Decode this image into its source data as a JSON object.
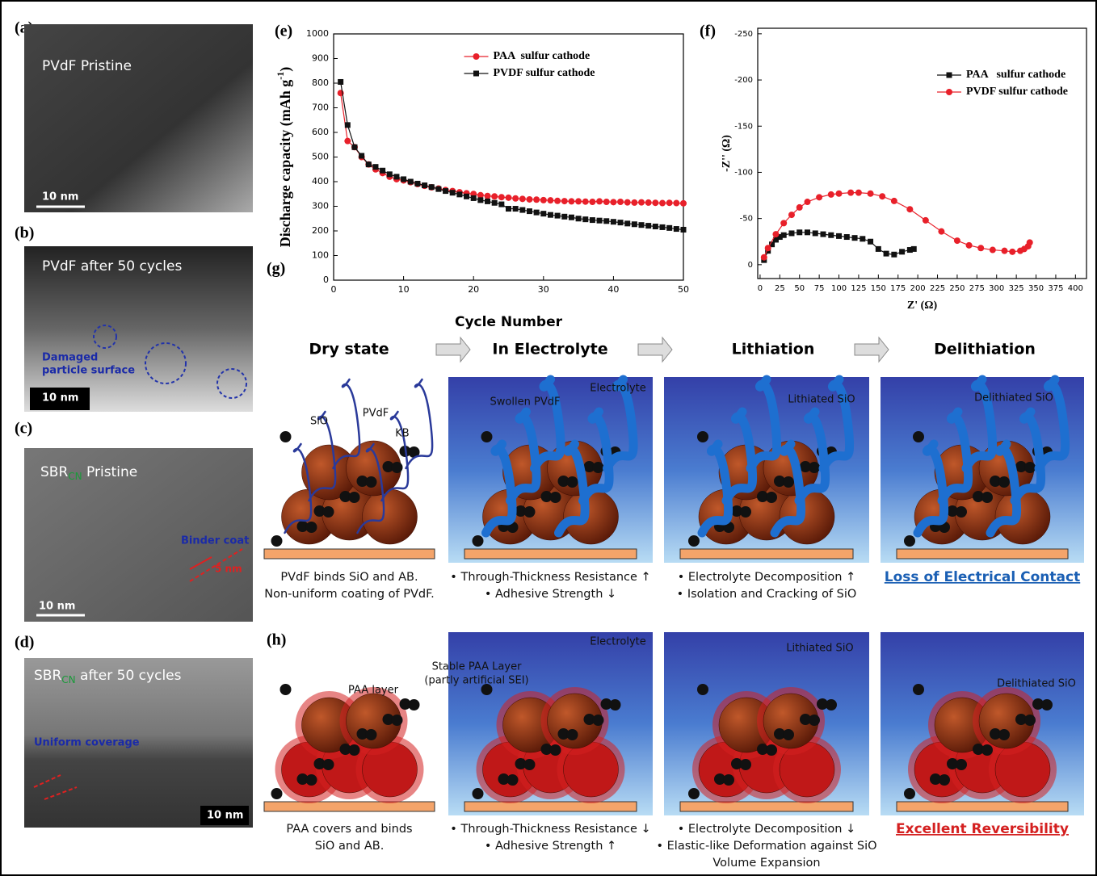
{
  "panels": {
    "a": {
      "label": "(a)",
      "title": "PVdF Pristine",
      "scale": "10 nm"
    },
    "b": {
      "label": "(b)",
      "title": "PVdF after 50 cycles",
      "annotation": [
        "Damaged",
        "particle surface"
      ],
      "scale": "10 nm"
    },
    "c": {
      "label": "(c)",
      "title": [
        "SBR",
        "CN",
        " Pristine"
      ],
      "annotation": "Binder coat",
      "dimension": "5 nm",
      "scale": "10 nm"
    },
    "d": {
      "label": "(d)",
      "title": [
        "SBR",
        "CN",
        " after 50 cycles"
      ],
      "annotation": "Uniform coverage",
      "scale": "10 nm"
    }
  },
  "chart_data": [
    {
      "type": "line",
      "label": "(e)",
      "xlabel": "Cycle Number",
      "ylabel": [
        "Discharge capacity (mAh g",
        "-1",
        ")"
      ],
      "x": [
        1,
        2,
        3,
        4,
        5,
        6,
        7,
        8,
        9,
        10,
        11,
        12,
        13,
        14,
        15,
        16,
        17,
        18,
        19,
        20,
        21,
        22,
        23,
        24,
        25,
        26,
        27,
        28,
        29,
        30,
        31,
        32,
        33,
        34,
        35,
        36,
        37,
        38,
        39,
        40,
        41,
        42,
        43,
        44,
        45,
        46,
        47,
        48,
        49,
        50
      ],
      "series": [
        {
          "name": "PAA  sulfur cathode",
          "color": "#e8202a",
          "marker": "circle",
          "values": [
            760,
            565,
            540,
            500,
            470,
            450,
            435,
            420,
            410,
            405,
            398,
            390,
            383,
            377,
            372,
            366,
            362,
            357,
            353,
            350,
            345,
            342,
            340,
            337,
            335,
            332,
            330,
            328,
            327,
            325,
            324,
            322,
            321,
            320,
            320,
            319,
            318,
            320,
            318,
            317,
            318,
            316,
            315,
            316,
            315,
            314,
            313,
            314,
            313,
            312
          ]
        },
        {
          "name": "PVDF sulfur cathode",
          "color": "#111111",
          "marker": "square",
          "values": [
            805,
            630,
            540,
            505,
            470,
            460,
            445,
            430,
            420,
            410,
            400,
            392,
            385,
            378,
            370,
            362,
            355,
            348,
            340,
            333,
            325,
            320,
            314,
            308,
            290,
            290,
            285,
            280,
            275,
            270,
            265,
            262,
            258,
            255,
            250,
            247,
            244,
            242,
            240,
            237,
            234,
            230,
            227,
            224,
            221,
            218,
            215,
            212,
            208,
            205
          ]
        }
      ],
      "xlim": [
        0,
        50
      ],
      "xticks": [
        0,
        10,
        20,
        30,
        40,
        50
      ],
      "ylim": [
        0,
        1000
      ],
      "yticks": [
        0,
        100,
        200,
        300,
        400,
        500,
        600,
        700,
        800,
        900,
        1000
      ],
      "legend": "upper center"
    },
    {
      "type": "scatter",
      "label": "(f)",
      "xlabel": "Z' (Ω)",
      "ylabel": "-Z'' (Ω)",
      "series": [
        {
          "name": "PAA   sulfur cathode",
          "color": "#111111",
          "marker": "square",
          "x": [
            5,
            10,
            15,
            20,
            25,
            30,
            40,
            50,
            60,
            70,
            80,
            90,
            100,
            110,
            120,
            130,
            140,
            150,
            160,
            170,
            180,
            190,
            195
          ],
          "values": [
            -5,
            -15,
            -22,
            -27,
            -30,
            -32,
            -34,
            -35,
            -35,
            -34,
            -33,
            -32,
            -31,
            -30,
            -29,
            -28,
            -25,
            -17,
            -12,
            -11,
            -14,
            -16,
            -17
          ]
        },
        {
          "name": "PVDF sulfur cathode",
          "color": "#e8202a",
          "marker": "circle",
          "x": [
            5,
            10,
            20,
            30,
            40,
            50,
            60,
            75,
            90,
            100,
            115,
            125,
            140,
            155,
            170,
            190,
            210,
            230,
            250,
            265,
            280,
            295,
            310,
            320,
            330,
            335,
            340,
            342
          ],
          "values": [
            -8,
            -18,
            -33,
            -45,
            -54,
            -62,
            -68,
            -73,
            -76,
            -77,
            -78,
            -78,
            -77,
            -74,
            -69,
            -60,
            -48,
            -36,
            -26,
            -21,
            -18,
            -16,
            -15,
            -14,
            -15,
            -17,
            -20,
            -24
          ]
        }
      ],
      "xlim": [
        -3,
        414
      ],
      "xticks": [
        0,
        25,
        50,
        75,
        100,
        125,
        150,
        175,
        200,
        225,
        250,
        275,
        300,
        325,
        350,
        375,
        400
      ],
      "ylim": [
        15,
        -256
      ],
      "yticks": [
        -250,
        -200,
        -150,
        -100,
        -50,
        0
      ],
      "legend": "upper right"
    }
  ],
  "schematic": {
    "stages": [
      "Dry state",
      "In Electrolyte",
      "Lithiation",
      "Delithiation"
    ],
    "g": {
      "label": "(g)",
      "labels": [
        "SiO",
        "PVdF",
        "KB",
        "Electrolyte",
        "Swollen PVdF",
        "Lithiated SiO",
        "Delithiated SiO"
      ],
      "captions": [
        [
          "PVdF binds SiO and AB.",
          "Non-uniform coating of PVdF."
        ],
        [
          "• Through-Thickness Resistance ↑",
          "• Adhesive Strength ↓"
        ],
        [
          "• Electrolyte Decomposition ↑",
          "• Isolation and Cracking of SiO"
        ],
        [
          "Loss of Electrical Contact"
        ]
      ]
    },
    "h": {
      "label": "(h)",
      "labels": [
        "PAA layer",
        "Electrolyte",
        "Stable PAA Layer",
        "(partly artificial SEI)",
        "Lithiated SiO",
        "Delithiated SiO"
      ],
      "captions": [
        [
          "PAA covers and binds",
          "SiO and AB."
        ],
        [
          "• Through-Thickness Resistance ↓",
          "• Adhesive Strength ↑"
        ],
        [
          "• Electrolyte Decomposition ↓",
          "• Elastic-like Deformation against SiO",
          "Volume Expansion"
        ],
        [
          "Excellent Reversibility"
        ]
      ]
    }
  }
}
